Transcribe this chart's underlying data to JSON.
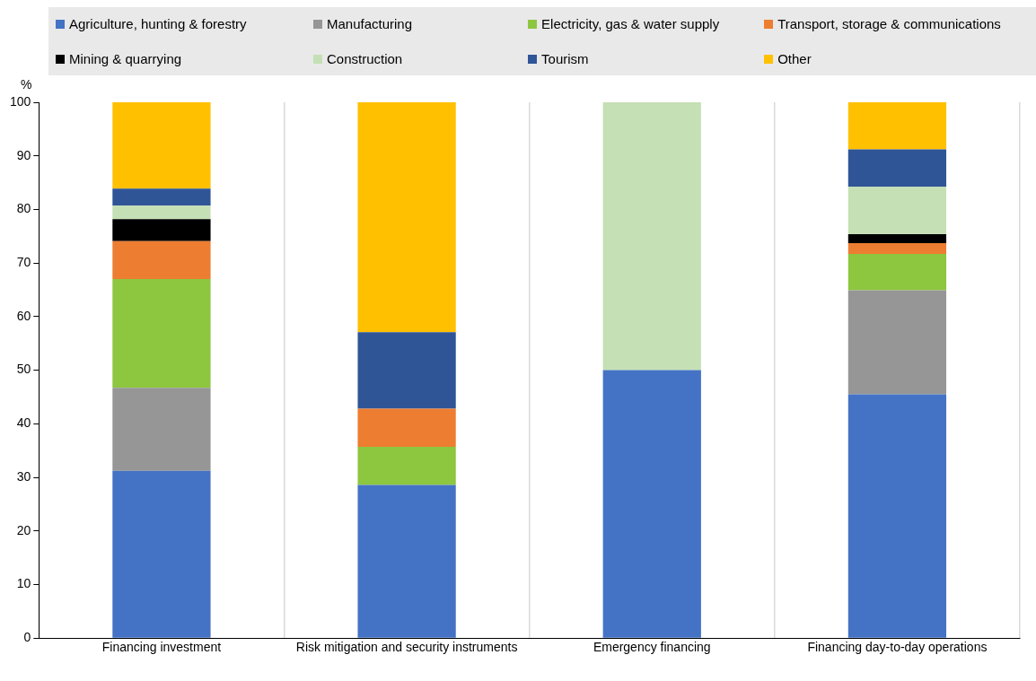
{
  "chart_data": {
    "type": "bar",
    "stacked": true,
    "ylabel": "%",
    "categories": [
      "Financing investment",
      "Risk mitigation and security instruments",
      "Emergency financing",
      "Financing day-to-day operations"
    ],
    "series": [
      {
        "name": "Agriculture, hunting & forestry",
        "color": "#4472c4",
        "values": [
          31.2,
          28.6,
          50,
          45.5
        ]
      },
      {
        "name": "Manufacturing",
        "color": "#969696",
        "values": [
          15.5,
          0,
          0,
          19.4
        ]
      },
      {
        "name": "Electricity, gas & water supply",
        "color": "#8dc63f",
        "values": [
          20.3,
          7.1,
          0,
          6.8
        ]
      },
      {
        "name": "Transport, storage & communications",
        "color": "#ed7d31",
        "values": [
          7.1,
          7.1,
          0,
          2
        ]
      },
      {
        "name": "Mining & quarrying",
        "color": "#000000",
        "values": [
          4.1,
          0,
          0,
          1.7
        ]
      },
      {
        "name": "Construction",
        "color": "#c5e0b4",
        "values": [
          2.5,
          0,
          50,
          8.8
        ]
      },
      {
        "name": "Tourism",
        "color": "#2f5597",
        "values": [
          3.2,
          14.3,
          0,
          7
        ]
      },
      {
        "name": "Other",
        "color": "#ffc000",
        "values": [
          16.1,
          42.9,
          0,
          8.8
        ]
      }
    ],
    "ylim": [
      0,
      100
    ],
    "yticks": [
      0,
      10,
      20,
      30,
      40,
      50,
      60,
      70,
      80,
      90,
      100
    ],
    "grid": "x",
    "legend": "top"
  }
}
